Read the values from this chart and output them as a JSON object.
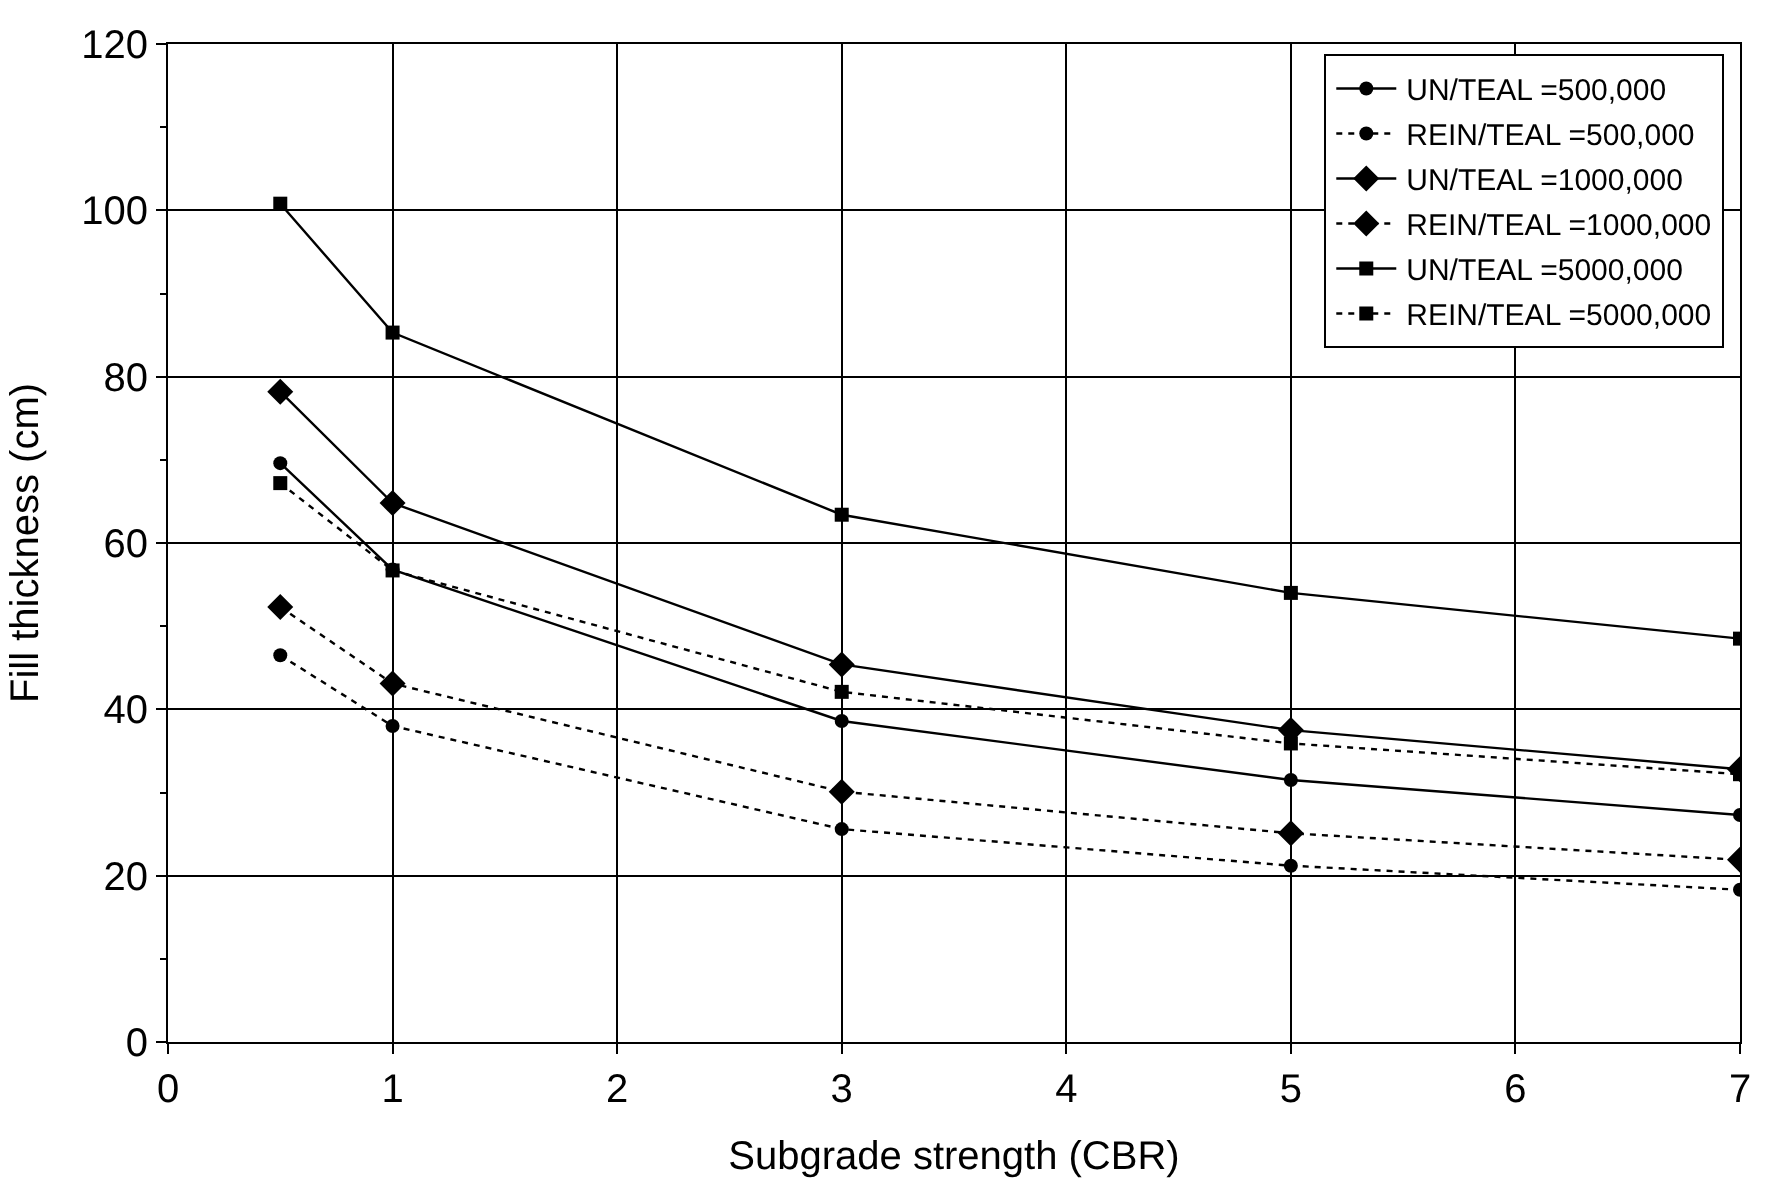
{
  "chart_data": {
    "type": "line",
    "xlabel": "Subgrade strength (CBR)",
    "ylabel": "Fill thickness (cm)",
    "x": [
      0.5,
      1,
      3,
      5,
      7
    ],
    "series": [
      {
        "name": "UN/TEAL =500,000",
        "color": "#000000",
        "marker": "circle",
        "line_style": "solid",
        "values": [
          69.6,
          56.8,
          38.6,
          31.5,
          27.3
        ]
      },
      {
        "name": "REIN/TEAL =500,000",
        "color": "#000000",
        "marker": "circle",
        "line_style": "dotted",
        "values": [
          46.5,
          38.0,
          25.6,
          21.2,
          18.3
        ]
      },
      {
        "name": "UN/TEAL =1000,000",
        "color": "#000000",
        "marker": "diamond",
        "line_style": "solid",
        "values": [
          78.2,
          64.8,
          45.4,
          37.5,
          32.8
        ]
      },
      {
        "name": "REIN/TEAL =1000,000",
        "color": "#000000",
        "marker": "diamond",
        "line_style": "dotted",
        "values": [
          52.3,
          43.1,
          30.1,
          25.1,
          21.9
        ]
      },
      {
        "name": "UN/TEAL =5000,000",
        "color": "#000000",
        "marker": "square",
        "line_style": "solid",
        "values": [
          100.8,
          85.3,
          63.4,
          54.0,
          48.5
        ]
      },
      {
        "name": "REIN/TEAL =5000,000",
        "color": "#000000",
        "marker": "square",
        "line_style": "dotted",
        "values": [
          67.2,
          56.7,
          42.1,
          35.9,
          32.2
        ]
      }
    ],
    "xlim": [
      0,
      7
    ],
    "xticks": [
      0,
      1,
      2,
      3,
      4,
      5,
      6,
      7
    ],
    "ylim": [
      0,
      120
    ],
    "yticks": [
      0,
      20,
      40,
      60,
      80,
      100,
      120
    ],
    "grid": true,
    "legend": "top right"
  }
}
